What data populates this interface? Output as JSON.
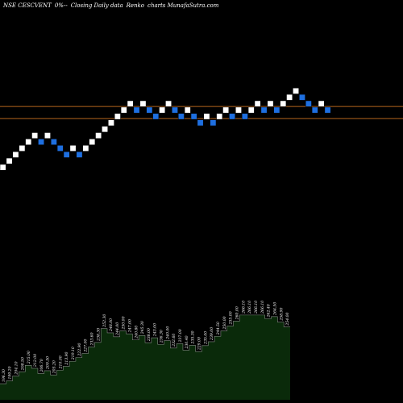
{
  "header": {
    "symbol": "NSE CESCVENT",
    "change": "0%",
    "separator": "--",
    "mode": "Closing Daily data",
    "chart_kind": "Renko",
    "site": "charts MunafaSutra.com"
  },
  "colors": {
    "background": "#000000",
    "up_brick": "#ffffff",
    "down_brick": "#1e6fe0",
    "brick_border": "#000000",
    "ref_line": "#b5651d",
    "volume_fill": "#0a2a0a",
    "volume_stroke": "#ffffff",
    "label_text": "#ffffff"
  },
  "chart_data": {
    "type": "renko",
    "title": "NSE CESCVENT 0%-- Closing Daily data Renko charts MunafaSutra.com",
    "bricks": [
      {
        "dir": "up",
        "level": 1
      },
      {
        "dir": "up",
        "level": 2
      },
      {
        "dir": "up",
        "level": 3
      },
      {
        "dir": "up",
        "level": 4
      },
      {
        "dir": "up",
        "level": 5
      },
      {
        "dir": "up",
        "level": 6
      },
      {
        "dir": "down",
        "level": 5
      },
      {
        "dir": "up",
        "level": 6
      },
      {
        "dir": "down",
        "level": 5
      },
      {
        "dir": "down",
        "level": 4
      },
      {
        "dir": "down",
        "level": 3
      },
      {
        "dir": "up",
        "level": 4
      },
      {
        "dir": "down",
        "level": 3
      },
      {
        "dir": "up",
        "level": 4
      },
      {
        "dir": "up",
        "level": 5
      },
      {
        "dir": "up",
        "level": 6
      },
      {
        "dir": "up",
        "level": 7
      },
      {
        "dir": "up",
        "level": 8
      },
      {
        "dir": "up",
        "level": 9
      },
      {
        "dir": "up",
        "level": 10
      },
      {
        "dir": "up",
        "level": 11
      },
      {
        "dir": "down",
        "level": 10
      },
      {
        "dir": "up",
        "level": 11
      },
      {
        "dir": "down",
        "level": 10
      },
      {
        "dir": "down",
        "level": 9
      },
      {
        "dir": "up",
        "level": 10
      },
      {
        "dir": "up",
        "level": 11
      },
      {
        "dir": "down",
        "level": 10
      },
      {
        "dir": "down",
        "level": 9
      },
      {
        "dir": "up",
        "level": 10
      },
      {
        "dir": "down",
        "level": 9
      },
      {
        "dir": "down",
        "level": 8
      },
      {
        "dir": "up",
        "level": 9
      },
      {
        "dir": "down",
        "level": 8
      },
      {
        "dir": "up",
        "level": 9
      },
      {
        "dir": "up",
        "level": 10
      },
      {
        "dir": "down",
        "level": 9
      },
      {
        "dir": "up",
        "level": 10
      },
      {
        "dir": "down",
        "level": 9
      },
      {
        "dir": "up",
        "level": 10
      },
      {
        "dir": "up",
        "level": 11
      },
      {
        "dir": "down",
        "level": 10
      },
      {
        "dir": "up",
        "level": 11
      },
      {
        "dir": "down",
        "level": 10
      },
      {
        "dir": "up",
        "level": 11
      },
      {
        "dir": "up",
        "level": 12
      },
      {
        "dir": "up",
        "level": 13
      },
      {
        "dir": "down",
        "level": 12
      },
      {
        "dir": "down",
        "level": 11
      },
      {
        "dir": "down",
        "level": 10
      },
      {
        "dir": "up",
        "level": 11
      },
      {
        "dir": "down",
        "level": 10
      }
    ],
    "ref_lines": [
      {
        "level": 10.1
      },
      {
        "level": 8.2
      }
    ],
    "volume": {
      "values": [
        196.3,
        199.2,
        204.1,
        208.5,
        215.0,
        212.0,
        206.7,
        209.5,
        205.2,
        210.0,
        213.9,
        219.1,
        222.9,
        227.0,
        233.6,
        238.3,
        252.3,
        248.0,
        244.0,
        250.0,
        247.0,
        240.8,
        245.3,
        238.0,
        243.0,
        236.3,
        240.0,
        232.6,
        237.0,
        230.4,
        235.3,
        229.0,
        235.0,
        239.0,
        244.5,
        250.0,
        255.0,
        260.0,
        266.1,
        266.1,
        266.1,
        266.1,
        262.4,
        264.5,
        258.9,
        254.0
      ],
      "labels": [
        "196.30",
        "199.20",
        "204.10",
        "208.50",
        "215.00",
        "212.00",
        "206.70",
        "209.50",
        "205.20",
        "210.00",
        "213.90",
        "219.10",
        "222.90",
        "227.00",
        "233.60",
        "238.30",
        "252.30",
        "248.00",
        "244.00",
        "250.00",
        "247.00",
        "240.80",
        "245.30",
        "238.00",
        "243.00",
        "236.30",
        "240.00",
        "232.60",
        "237.00",
        "230.40",
        "235.30",
        "229.00",
        "235.00",
        "239.00",
        "244.50",
        "250.00",
        "255.00",
        "260.00",
        "266.10",
        "266.10",
        "266.10",
        "266.10",
        "262.40",
        "264.50",
        "258.90",
        "254.00"
      ],
      "range": [
        180,
        275
      ]
    }
  }
}
